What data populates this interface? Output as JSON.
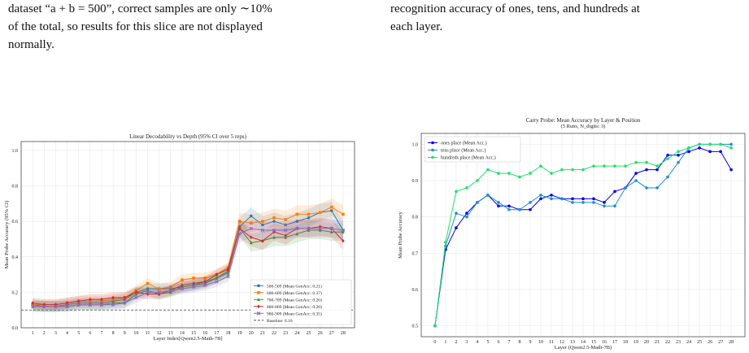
{
  "captions": {
    "left_lines": [
      "dataset “a + b = 500”, correct samples are only ∼10%",
      "of the total, so results for this slice are not displayed",
      "normally."
    ],
    "right_lines": [
      "recognition accuracy of ones, tens, and hundreds at",
      "each layer."
    ]
  },
  "chart_data": [
    {
      "type": "line",
      "title": "Linear Decodability vs Depth (95% CI over 5 reps)",
      "xlabel": "Layer Index[Qwen2.5-Math-7B]",
      "ylabel": "Mean Probe Accuracy (95% CI)",
      "x": [
        1,
        2,
        3,
        4,
        5,
        6,
        7,
        8,
        9,
        10,
        11,
        12,
        13,
        14,
        15,
        16,
        17,
        18,
        19,
        20,
        21,
        22,
        23,
        24,
        25,
        26,
        27,
        28
      ],
      "xlim": [
        0,
        29
      ],
      "ylim": [
        0.0,
        1.05
      ],
      "yticks": [
        "0.0",
        "0.2",
        "0.4",
        "0.6",
        "0.8",
        "1.0"
      ],
      "grid": true,
      "legend_position": "lower right",
      "series": [
        {
          "name": "500-509 (Mean GenAcc: 0.21)",
          "color": "#1f77b4",
          "marker": "circle",
          "values": [
            0.13,
            0.12,
            0.12,
            0.13,
            0.14,
            0.14,
            0.14,
            0.15,
            0.16,
            0.2,
            0.22,
            0.22,
            0.22,
            0.23,
            0.24,
            0.26,
            0.28,
            0.32,
            0.57,
            0.63,
            0.58,
            0.6,
            0.58,
            0.6,
            0.62,
            0.65,
            0.66,
            0.55
          ]
        },
        {
          "name": "600-609 (Mean GenAcc: 0.37)",
          "color": "#ff7f0e",
          "marker": "square",
          "values": [
            0.13,
            0.13,
            0.13,
            0.14,
            0.15,
            0.15,
            0.15,
            0.16,
            0.17,
            0.21,
            0.25,
            0.22,
            0.23,
            0.27,
            0.28,
            0.28,
            0.3,
            0.34,
            0.6,
            0.59,
            0.6,
            0.62,
            0.61,
            0.64,
            0.64,
            0.65,
            0.68,
            0.64
          ]
        },
        {
          "name": "700-709 (Mean GenAcc: 0.20)",
          "color": "#2ca02c",
          "marker": "triangle",
          "values": [
            0.12,
            0.12,
            0.12,
            0.12,
            0.13,
            0.13,
            0.13,
            0.14,
            0.14,
            0.19,
            0.21,
            0.19,
            0.2,
            0.23,
            0.24,
            0.25,
            0.28,
            0.31,
            0.56,
            0.48,
            0.49,
            0.51,
            0.51,
            0.53,
            0.55,
            0.55,
            0.54,
            0.54
          ]
        },
        {
          "name": "800-809 (Mean GenAcc: 0.20)",
          "color": "#d62728",
          "marker": "diamond",
          "values": [
            0.14,
            0.13,
            0.13,
            0.14,
            0.15,
            0.16,
            0.16,
            0.17,
            0.17,
            0.2,
            0.19,
            0.19,
            0.21,
            0.24,
            0.25,
            0.26,
            0.3,
            0.33,
            0.56,
            0.51,
            0.49,
            0.54,
            0.52,
            0.56,
            0.56,
            0.57,
            0.56,
            0.49
          ]
        },
        {
          "name": "900-909 (Mean GenAcc: 0.35)",
          "color": "#9467bd",
          "marker": "x",
          "values": [
            0.12,
            0.12,
            0.12,
            0.12,
            0.13,
            0.13,
            0.13,
            0.13,
            0.14,
            0.17,
            0.2,
            0.2,
            0.21,
            0.22,
            0.23,
            0.24,
            0.26,
            0.29,
            0.53,
            0.56,
            0.55,
            0.55,
            0.55,
            0.56,
            0.56,
            0.56,
            0.56,
            0.55
          ]
        }
      ],
      "baseline": {
        "name": "Baseline: 0.10",
        "value": 0.1
      }
    },
    {
      "type": "line",
      "title": "Carry Probe: Mean Accuracy by Layer & Position",
      "subtitle": "(5 Runs, N_digits: 3)",
      "xlabel": "Layer (Qwen2.5-Math-7B)",
      "ylabel": "Mean Probe Accuracy",
      "x": [
        0,
        1,
        2,
        3,
        4,
        5,
        6,
        7,
        8,
        9,
        10,
        11,
        12,
        13,
        14,
        15,
        16,
        17,
        18,
        19,
        20,
        21,
        22,
        23,
        24,
        25,
        26,
        27,
        28
      ],
      "xlim": [
        -1.3,
        29.3
      ],
      "ylim": [
        0.47,
        1.03
      ],
      "yticks": [
        "0.5",
        "0.6",
        "0.7",
        "0.8",
        "0.9",
        "1.0"
      ],
      "grid": true,
      "legend_position": "upper left",
      "series": [
        {
          "name": "ones place (Mean Acc.)",
          "color": "#0000ee",
          "values": [
            0.5,
            0.71,
            0.77,
            0.81,
            0.84,
            0.86,
            0.83,
            0.83,
            0.82,
            0.82,
            0.85,
            0.86,
            0.85,
            0.85,
            0.85,
            0.85,
            0.84,
            0.87,
            0.88,
            0.92,
            0.93,
            0.93,
            0.97,
            0.97,
            0.98,
            0.99,
            0.98,
            0.98,
            0.93
          ]
        },
        {
          "name": "tens place (Mean Acc.)",
          "color": "#1f8fd0",
          "values": [
            0.5,
            0.72,
            0.81,
            0.8,
            0.84,
            0.86,
            0.84,
            0.82,
            0.82,
            0.84,
            0.86,
            0.85,
            0.85,
            0.84,
            0.84,
            0.84,
            0.83,
            0.83,
            0.88,
            0.9,
            0.88,
            0.88,
            0.91,
            0.95,
            0.99,
            1.0,
            1.0,
            1.0,
            1.0
          ]
        },
        {
          "name": "hundreds place (Mean Acc.)",
          "color": "#22e06a",
          "values": [
            0.5,
            0.73,
            0.87,
            0.88,
            0.9,
            0.93,
            0.92,
            0.92,
            0.91,
            0.92,
            0.94,
            0.92,
            0.93,
            0.93,
            0.93,
            0.94,
            0.94,
            0.94,
            0.94,
            0.95,
            0.95,
            0.94,
            0.96,
            0.98,
            0.99,
            1.0,
            1.0,
            1.0,
            0.99
          ]
        }
      ]
    }
  ]
}
